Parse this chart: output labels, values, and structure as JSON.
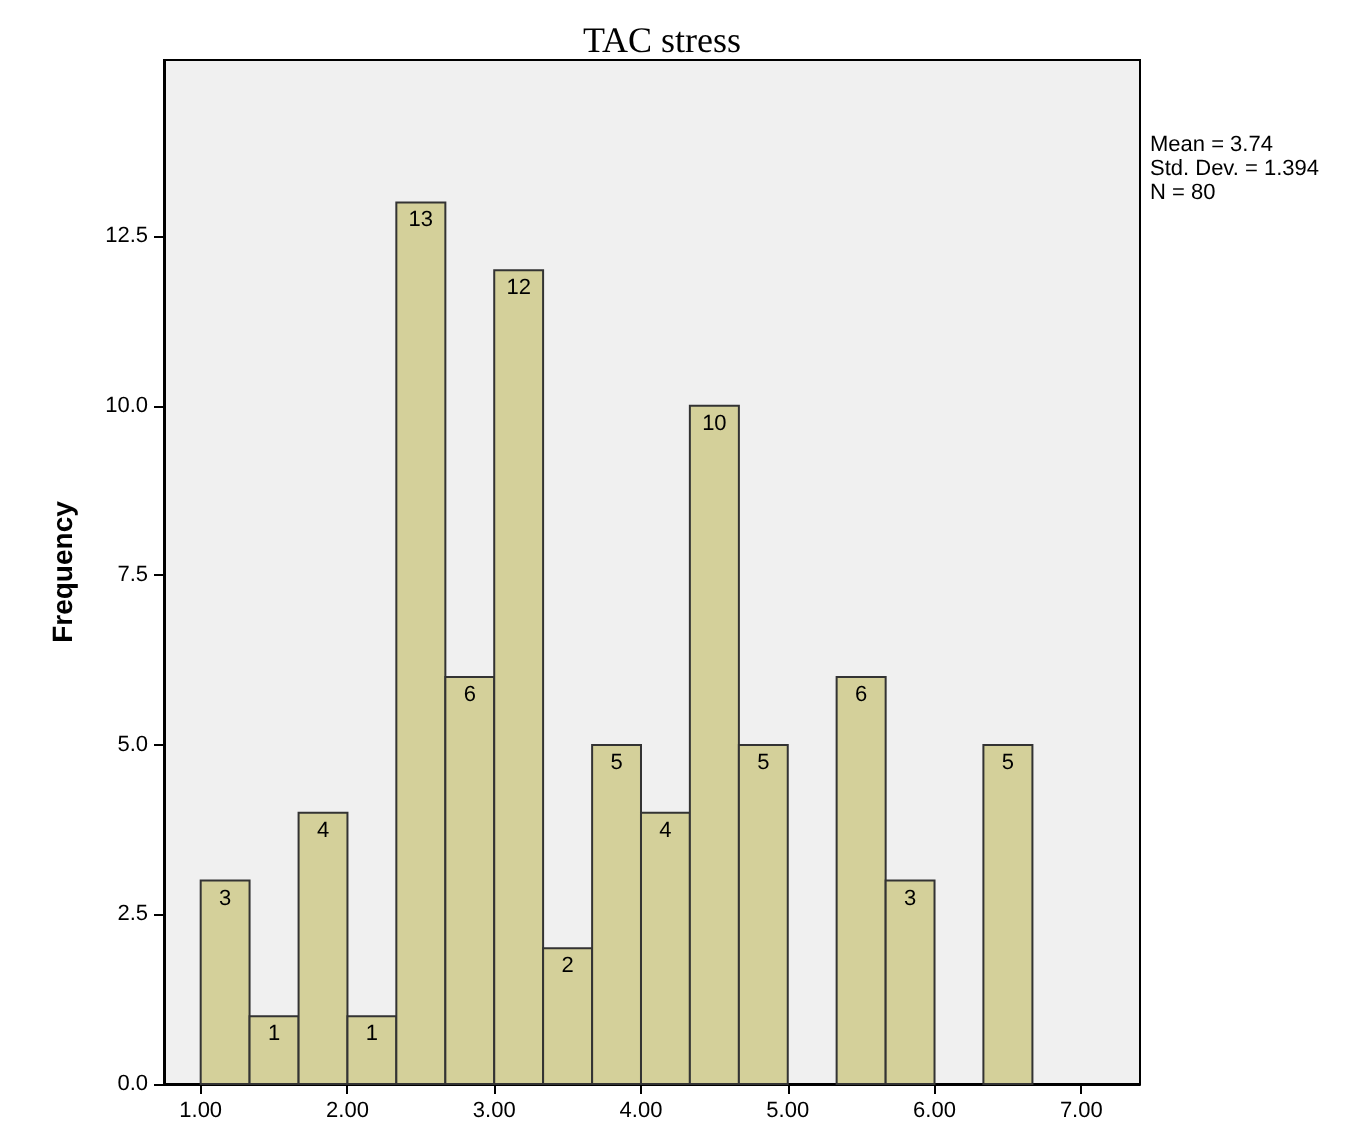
{
  "chart_data": {
    "type": "histogram",
    "title": "TAC stress",
    "ylabel": "Frequency",
    "bins": [
      1.0,
      1.333,
      1.667,
      2.0,
      2.333,
      2.667,
      3.0,
      3.333,
      3.667,
      4.0,
      4.333,
      4.667,
      5.0,
      5.333,
      5.667,
      6.0,
      6.333,
      6.667,
      7.0
    ],
    "values": [
      3,
      1,
      4,
      1,
      13,
      6,
      12,
      2,
      5,
      4,
      10,
      5,
      0,
      6,
      3,
      0,
      5,
      0
    ],
    "value_labels": [
      "3",
      "1",
      "4",
      "1",
      "13",
      "6",
      "12",
      "2",
      "5",
      "4",
      "10",
      "5",
      null,
      "6",
      "3",
      null,
      "5",
      null
    ],
    "color": "#d4d09a",
    "xlim": [
      0.75,
      7.4
    ],
    "xticks": [
      {
        "value": 1,
        "label": "1.00"
      },
      {
        "value": 2,
        "label": "2.00"
      },
      {
        "value": 3,
        "label": "3.00"
      },
      {
        "value": 4,
        "label": "4.00"
      },
      {
        "value": 5,
        "label": "5.00"
      },
      {
        "value": 6,
        "label": "6.00"
      },
      {
        "value": 7,
        "label": "7.00"
      }
    ],
    "ylim": [
      0,
      15.1
    ],
    "yticks": [
      {
        "value": 0,
        "label": "0.0"
      },
      {
        "value": 2.5,
        "label": "2.5"
      },
      {
        "value": 5,
        "label": "5.0"
      },
      {
        "value": 7.5,
        "label": "7.5"
      },
      {
        "value": 10,
        "label": "10.0"
      },
      {
        "value": 12.5,
        "label": "12.5"
      }
    ],
    "grid": false,
    "annotations": [
      "Mean = 3.74",
      "Std. Dev. = 1.394",
      "N = 80"
    ]
  }
}
